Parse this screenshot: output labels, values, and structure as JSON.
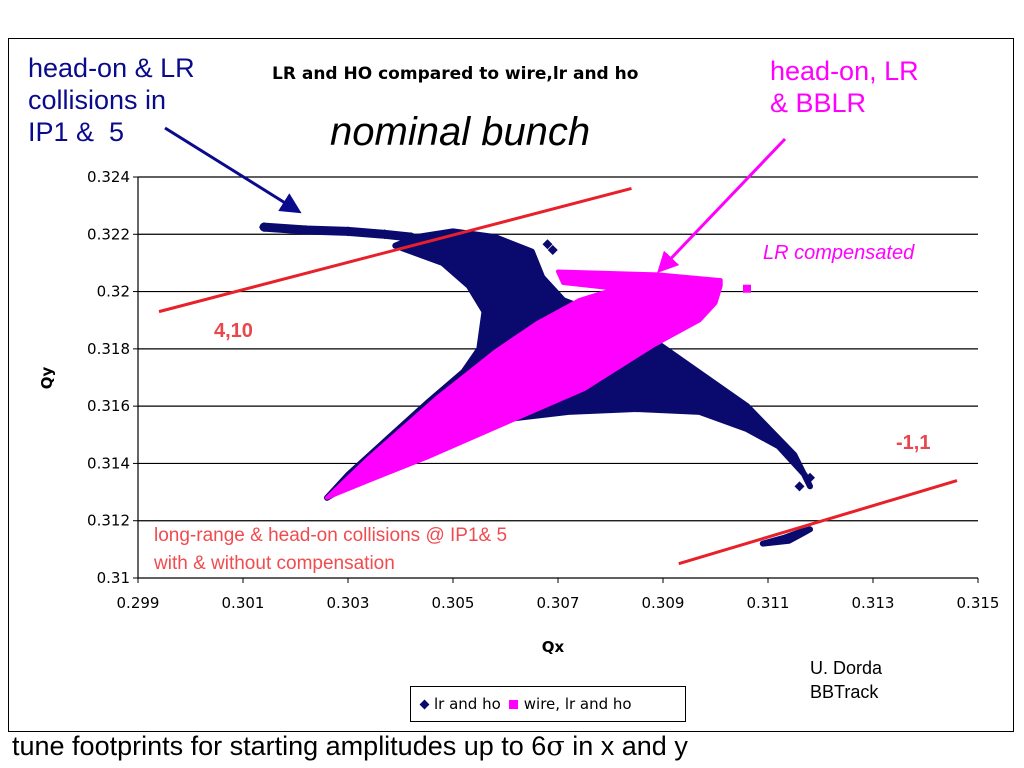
{
  "annotations": {
    "left_line1": "head-on & LR",
    "left_line2": "collisions in",
    "left_line3": "IP1 &  5",
    "right_line1": "head-on, LR",
    "right_line2": "& BBLR",
    "subtitle": "nominal bunch",
    "lr_compensated": "LR compensated",
    "resonance_a": "4,10",
    "resonance_b": "-1,1",
    "note_line1": "long-range & head-on collisions @ IP1& 5",
    "note_line2": "with & without compensation",
    "credit_line1": "U. Dorda",
    "credit_line2": "BBTrack",
    "caption_prefix": "tune footprints for starting amplitudes up to 6",
    "caption_symbol": "σ",
    "caption_suffix": " in x and y"
  },
  "colors": {
    "lr_and_ho": "#0a0a6e",
    "wire_lr_and_ho": "#ff00ff",
    "annotation_blue": "#0a0a8c",
    "resonance_red": "#e8202a"
  },
  "chart_data": {
    "type": "scatter",
    "title": "LR and HO compared to wire,lr and ho",
    "xlabel": "Qx",
    "ylabel": "Qy",
    "xlim": [
      0.299,
      0.315
    ],
    "ylim": [
      0.31,
      0.324
    ],
    "x_ticks": [
      "0.299",
      "0.301",
      "0.303",
      "0.305",
      "0.307",
      "0.309",
      "0.311",
      "0.313",
      "0.315"
    ],
    "y_ticks": [
      "0.31",
      "0.312",
      "0.314",
      "0.316",
      "0.318",
      "0.32",
      "0.322",
      "0.324"
    ],
    "grid": "horizontal",
    "legend_position": "bottom",
    "series": [
      {
        "name": "lr and ho",
        "marker": "diamond",
        "outline": [
          [
            0.3026,
            0.3128
          ],
          [
            0.3036,
            0.3139
          ],
          [
            0.3046,
            0.3148
          ],
          [
            0.3058,
            0.3155
          ],
          [
            0.3072,
            0.3158
          ],
          [
            0.3085,
            0.3159
          ],
          [
            0.3097,
            0.3158
          ],
          [
            0.3106,
            0.3152
          ],
          [
            0.3112,
            0.3146
          ],
          [
            0.3117,
            0.3136
          ],
          [
            0.3118,
            0.3132
          ],
          [
            0.3115,
            0.3143
          ],
          [
            0.3106,
            0.316
          ],
          [
            0.3092,
            0.3178
          ],
          [
            0.3085,
            0.3187
          ],
          [
            0.3078,
            0.3192
          ],
          [
            0.3071,
            0.3197
          ],
          [
            0.3067,
            0.3205
          ],
          [
            0.3065,
            0.3214
          ],
          [
            0.3058,
            0.3219
          ],
          [
            0.305,
            0.3221
          ],
          [
            0.3043,
            0.3219
          ],
          [
            0.3039,
            0.3216
          ],
          [
            0.3048,
            0.321
          ],
          [
            0.3053,
            0.3202
          ],
          [
            0.3056,
            0.3193
          ],
          [
            0.3055,
            0.318
          ],
          [
            0.3052,
            0.3172
          ],
          [
            0.3045,
            0.3161
          ],
          [
            0.3036,
            0.3146
          ],
          [
            0.303,
            0.3136
          ]
        ],
        "tail": [
          [
            0.3014,
            0.32225
          ],
          [
            0.3022,
            0.32215
          ],
          [
            0.303,
            0.3221
          ],
          [
            0.3037,
            0.322
          ],
          [
            0.3042,
            0.3219
          ]
        ],
        "stray_points": [
          [
            0.3068,
            0.32165
          ],
          [
            0.3069,
            0.32145
          ],
          [
            0.3116,
            0.3132
          ],
          [
            0.3118,
            0.3135
          ]
        ],
        "island": [
          [
            0.3109,
            0.3112
          ],
          [
            0.3113,
            0.3114
          ],
          [
            0.3116,
            0.3116
          ],
          [
            0.3118,
            0.3117
          ],
          [
            0.3117,
            0.3116
          ],
          [
            0.3114,
            0.3113
          ]
        ]
      },
      {
        "name": "wire, lr and ho",
        "marker": "square",
        "outline": [
          [
            0.3026,
            0.3128
          ],
          [
            0.3034,
            0.3134
          ],
          [
            0.3045,
            0.3142
          ],
          [
            0.306,
            0.3154
          ],
          [
            0.3075,
            0.3166
          ],
          [
            0.3088,
            0.3181
          ],
          [
            0.3097,
            0.319
          ],
          [
            0.31,
            0.3196
          ],
          [
            0.3101,
            0.3202
          ],
          [
            0.3101,
            0.3204
          ],
          [
            0.3089,
            0.3206
          ],
          [
            0.307,
            0.3207
          ],
          [
            0.3071,
            0.3203
          ],
          [
            0.3081,
            0.3201
          ],
          [
            0.3074,
            0.3197
          ],
          [
            0.3066,
            0.3189
          ],
          [
            0.3058,
            0.3179
          ],
          [
            0.3047,
            0.3163
          ],
          [
            0.3034,
            0.3142
          ]
        ],
        "stray_points": [
          [
            0.3106,
            0.3201
          ]
        ]
      }
    ],
    "resonance_lines": [
      {
        "label": "4,10",
        "x": [
          0.2994,
          0.3084
        ],
        "y": [
          0.3193,
          0.3236
        ]
      },
      {
        "label": "-1,1",
        "x": [
          0.3093,
          0.3146
        ],
        "y": [
          0.3105,
          0.3134
        ]
      }
    ]
  }
}
